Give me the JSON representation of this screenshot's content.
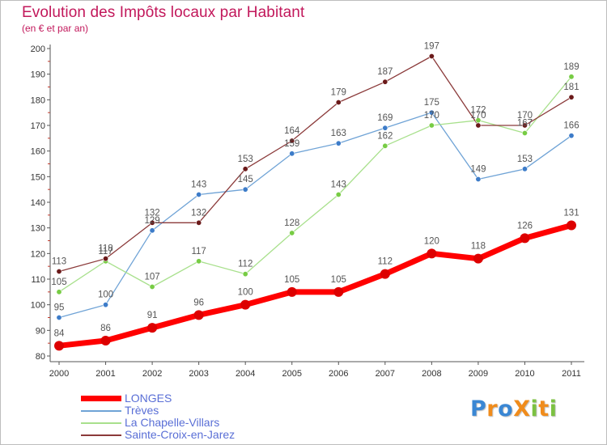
{
  "chart_data": {
    "type": "line",
    "title": "Evolution des Impôts locaux par Habitant",
    "subtitle": "(en € et par an)",
    "xlabel": "",
    "ylabel": "",
    "x": [
      "2000",
      "2001",
      "2002",
      "2003",
      "2004",
      "2005",
      "2006",
      "2007",
      "2008",
      "2009",
      "2010",
      "2011"
    ],
    "ylim": [
      80,
      200
    ],
    "yticks": [
      80,
      90,
      100,
      110,
      120,
      130,
      140,
      150,
      160,
      170,
      180,
      190,
      200
    ],
    "grid": false,
    "legend_position": "bottom-left",
    "series": [
      {
        "name": "LONGES",
        "color": "#ff0000",
        "marker": "#dd0000",
        "values": [
          84,
          86,
          91,
          96,
          100,
          105,
          105,
          112,
          120,
          118,
          126,
          131
        ],
        "emphasis": true
      },
      {
        "name": "Trèves",
        "color": "#6fa3d6",
        "marker": "#3d7cc9",
        "values": [
          95,
          100,
          129,
          143,
          145,
          159,
          163,
          169,
          175,
          149,
          153,
          166
        ]
      },
      {
        "name": "La Chapelle-Villars",
        "color": "#a8e08c",
        "marker": "#77cc44",
        "values": [
          105,
          117,
          107,
          117,
          112,
          128,
          143,
          162,
          170,
          172,
          167,
          189
        ]
      },
      {
        "name": "Sainte-Croix-en-Jarez",
        "color": "#8b3a3a",
        "marker": "#6b1a1a",
        "values": [
          113,
          118,
          132,
          132,
          153,
          164,
          179,
          187,
          197,
          170,
          170,
          181
        ]
      }
    ],
    "data_labels": {
      "LONGES": [
        "84",
        "86",
        "91",
        "96",
        "100",
        "105",
        "105",
        "112",
        "120",
        "118",
        "126",
        "131"
      ],
      "Trèves": [
        "95",
        "100",
        "129",
        "143",
        "145",
        "159",
        "163",
        "169",
        "175",
        "149",
        "153",
        "166"
      ],
      "La Chapelle-Villars": [
        "105",
        "117",
        "107",
        "117",
        "112",
        "128",
        "143",
        "162",
        "170",
        "172",
        "167",
        "189"
      ],
      "Sainte-Croix-en-Jarez": [
        "113",
        "118",
        "132",
        "132",
        "153",
        "164",
        "179",
        "187",
        "197",
        "170",
        "170",
        "181"
      ]
    }
  },
  "logo": {
    "text": "ProXiti",
    "letters": [
      {
        "ch": "P",
        "color": "#3a87d4"
      },
      {
        "ch": "r",
        "color": "#f08c1c"
      },
      {
        "ch": "o",
        "color": "#3a87d4"
      },
      {
        "ch": "X",
        "color": "#f08c1c"
      },
      {
        "ch": "i",
        "color": "#7cc142"
      },
      {
        "ch": "t",
        "color": "#f08c1c"
      },
      {
        "ch": "i",
        "color": "#7cc142"
      }
    ]
  },
  "colors": {
    "title": "#c2185b",
    "axis": "#555555",
    "tick_label": "#333333",
    "data_label": "#555555",
    "legend_text": "#5a6fd6"
  }
}
